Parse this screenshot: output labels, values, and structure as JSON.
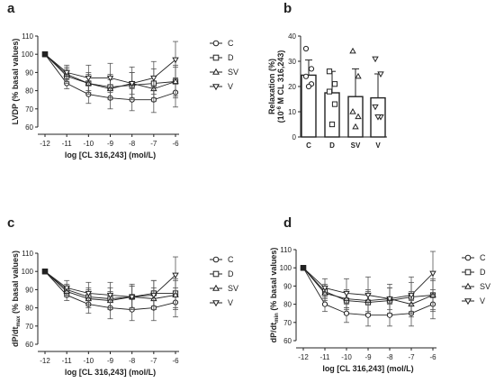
{
  "chart_data": [
    {
      "panel": "a",
      "type": "line",
      "x": [
        -12,
        -11,
        -10,
        -9,
        -8,
        -7,
        -6
      ],
      "xlabel": "log [CL 316,243] (mol/L)",
      "ylabel": "LVDP (% basal values)",
      "ylim": [
        60,
        110
      ],
      "yticks": [
        60,
        70,
        80,
        90,
        100,
        110
      ],
      "legend_position": "right",
      "series": [
        {
          "name": "C",
          "marker": "circle",
          "values": [
            100,
            84,
            78,
            76,
            75,
            75,
            79
          ],
          "errors": [
            0,
            3,
            5,
            6,
            6,
            7,
            8
          ]
        },
        {
          "name": "D",
          "marker": "square",
          "values": [
            100,
            88,
            84,
            82,
            83,
            84,
            85
          ],
          "errors": [
            0,
            4,
            6,
            7,
            7,
            8,
            9
          ]
        },
        {
          "name": "SV",
          "marker": "triangle",
          "values": [
            100,
            89,
            84,
            81,
            84,
            81,
            85
          ],
          "errors": [
            0,
            4,
            5,
            5,
            6,
            7,
            8
          ]
        },
        {
          "name": "V",
          "marker": "triangle-down",
          "values": [
            100,
            90,
            87,
            87,
            84,
            87,
            97
          ],
          "errors": [
            0,
            4,
            7,
            8,
            9,
            9,
            10
          ]
        }
      ]
    },
    {
      "panel": "b",
      "type": "bar",
      "categories": [
        "C",
        "D",
        "SV",
        "V"
      ],
      "values": [
        24.5,
        17.5,
        16,
        15.5
      ],
      "errors": [
        6,
        8.5,
        11,
        9.5
      ],
      "markers": [
        "circle",
        "square",
        "triangle",
        "triangle-down"
      ],
      "points": [
        [
          35,
          27,
          24,
          21,
          20
        ],
        [
          26,
          21,
          18,
          13,
          5
        ],
        [
          34,
          24,
          10,
          8,
          4
        ],
        [
          31,
          25,
          12,
          8,
          8
        ]
      ],
      "ylabel_line1": "Relaxation (%)",
      "ylabel_line2": "(10",
      "ylabel_sup": "-6",
      "ylabel_line2_rest": " M CL 316,243)",
      "ylim": [
        0,
        40
      ],
      "yticks": [
        0,
        10,
        20,
        30,
        40
      ]
    },
    {
      "panel": "c",
      "type": "line",
      "x": [
        -12,
        -11,
        -10,
        -9,
        -8,
        -7,
        -6
      ],
      "xlabel": "log [CL 316,243] (mol/L)",
      "ylabel_main": "dP/dt",
      "ylabel_sub": "max",
      "ylabel_rest": " (% basal values)",
      "ylim": [
        60,
        110
      ],
      "yticks": [
        60,
        70,
        80,
        90,
        100,
        110
      ],
      "legend_position": "right",
      "series": [
        {
          "name": "C",
          "marker": "circle",
          "values": [
            100,
            87,
            82,
            80,
            79,
            80,
            83
          ],
          "errors": [
            0,
            3,
            5,
            6,
            6,
            7,
            8
          ]
        },
        {
          "name": "D",
          "marker": "square",
          "values": [
            100,
            90,
            86,
            85,
            86,
            88,
            88
          ],
          "errors": [
            0,
            3,
            5,
            6,
            6,
            7,
            8
          ]
        },
        {
          "name": "SV",
          "marker": "triangle",
          "values": [
            100,
            89,
            85,
            84,
            86,
            85,
            87
          ],
          "errors": [
            0,
            3,
            5,
            5,
            6,
            6,
            8
          ]
        },
        {
          "name": "V",
          "marker": "triangle-down",
          "values": [
            100,
            91,
            88,
            87,
            86,
            87,
            98
          ],
          "errors": [
            0,
            4,
            6,
            7,
            7,
            8,
            10
          ]
        }
      ]
    },
    {
      "panel": "d",
      "type": "line",
      "x": [
        -12,
        -11,
        -10,
        -9,
        -8,
        -7,
        -6
      ],
      "xlabel": "log [CL 316,243] (mol/L)",
      "ylabel_main": "dP/dt",
      "ylabel_sub": "min",
      "ylabel_rest": " (% basal values)",
      "ylim": [
        60,
        110
      ],
      "yticks": [
        60,
        70,
        80,
        90,
        100,
        110
      ],
      "legend_position": "right",
      "series": [
        {
          "name": "C",
          "marker": "circle",
          "values": [
            100,
            80,
            75,
            74,
            74,
            75,
            80
          ],
          "errors": [
            0,
            4,
            5,
            6,
            6,
            7,
            8
          ]
        },
        {
          "name": "D",
          "marker": "square",
          "values": [
            100,
            87,
            82,
            81,
            82,
            84,
            85
          ],
          "errors": [
            0,
            4,
            5,
            6,
            7,
            8,
            9
          ]
        },
        {
          "name": "SV",
          "marker": "triangle",
          "values": [
            100,
            86,
            83,
            82,
            83,
            80,
            85
          ],
          "errors": [
            0,
            4,
            5,
            6,
            6,
            7,
            8
          ]
        },
        {
          "name": "V",
          "marker": "triangle-down",
          "values": [
            100,
            89,
            86,
            85,
            83,
            85,
            97
          ],
          "errors": [
            0,
            5,
            8,
            10,
            8,
            10,
            12
          ]
        }
      ]
    }
  ]
}
